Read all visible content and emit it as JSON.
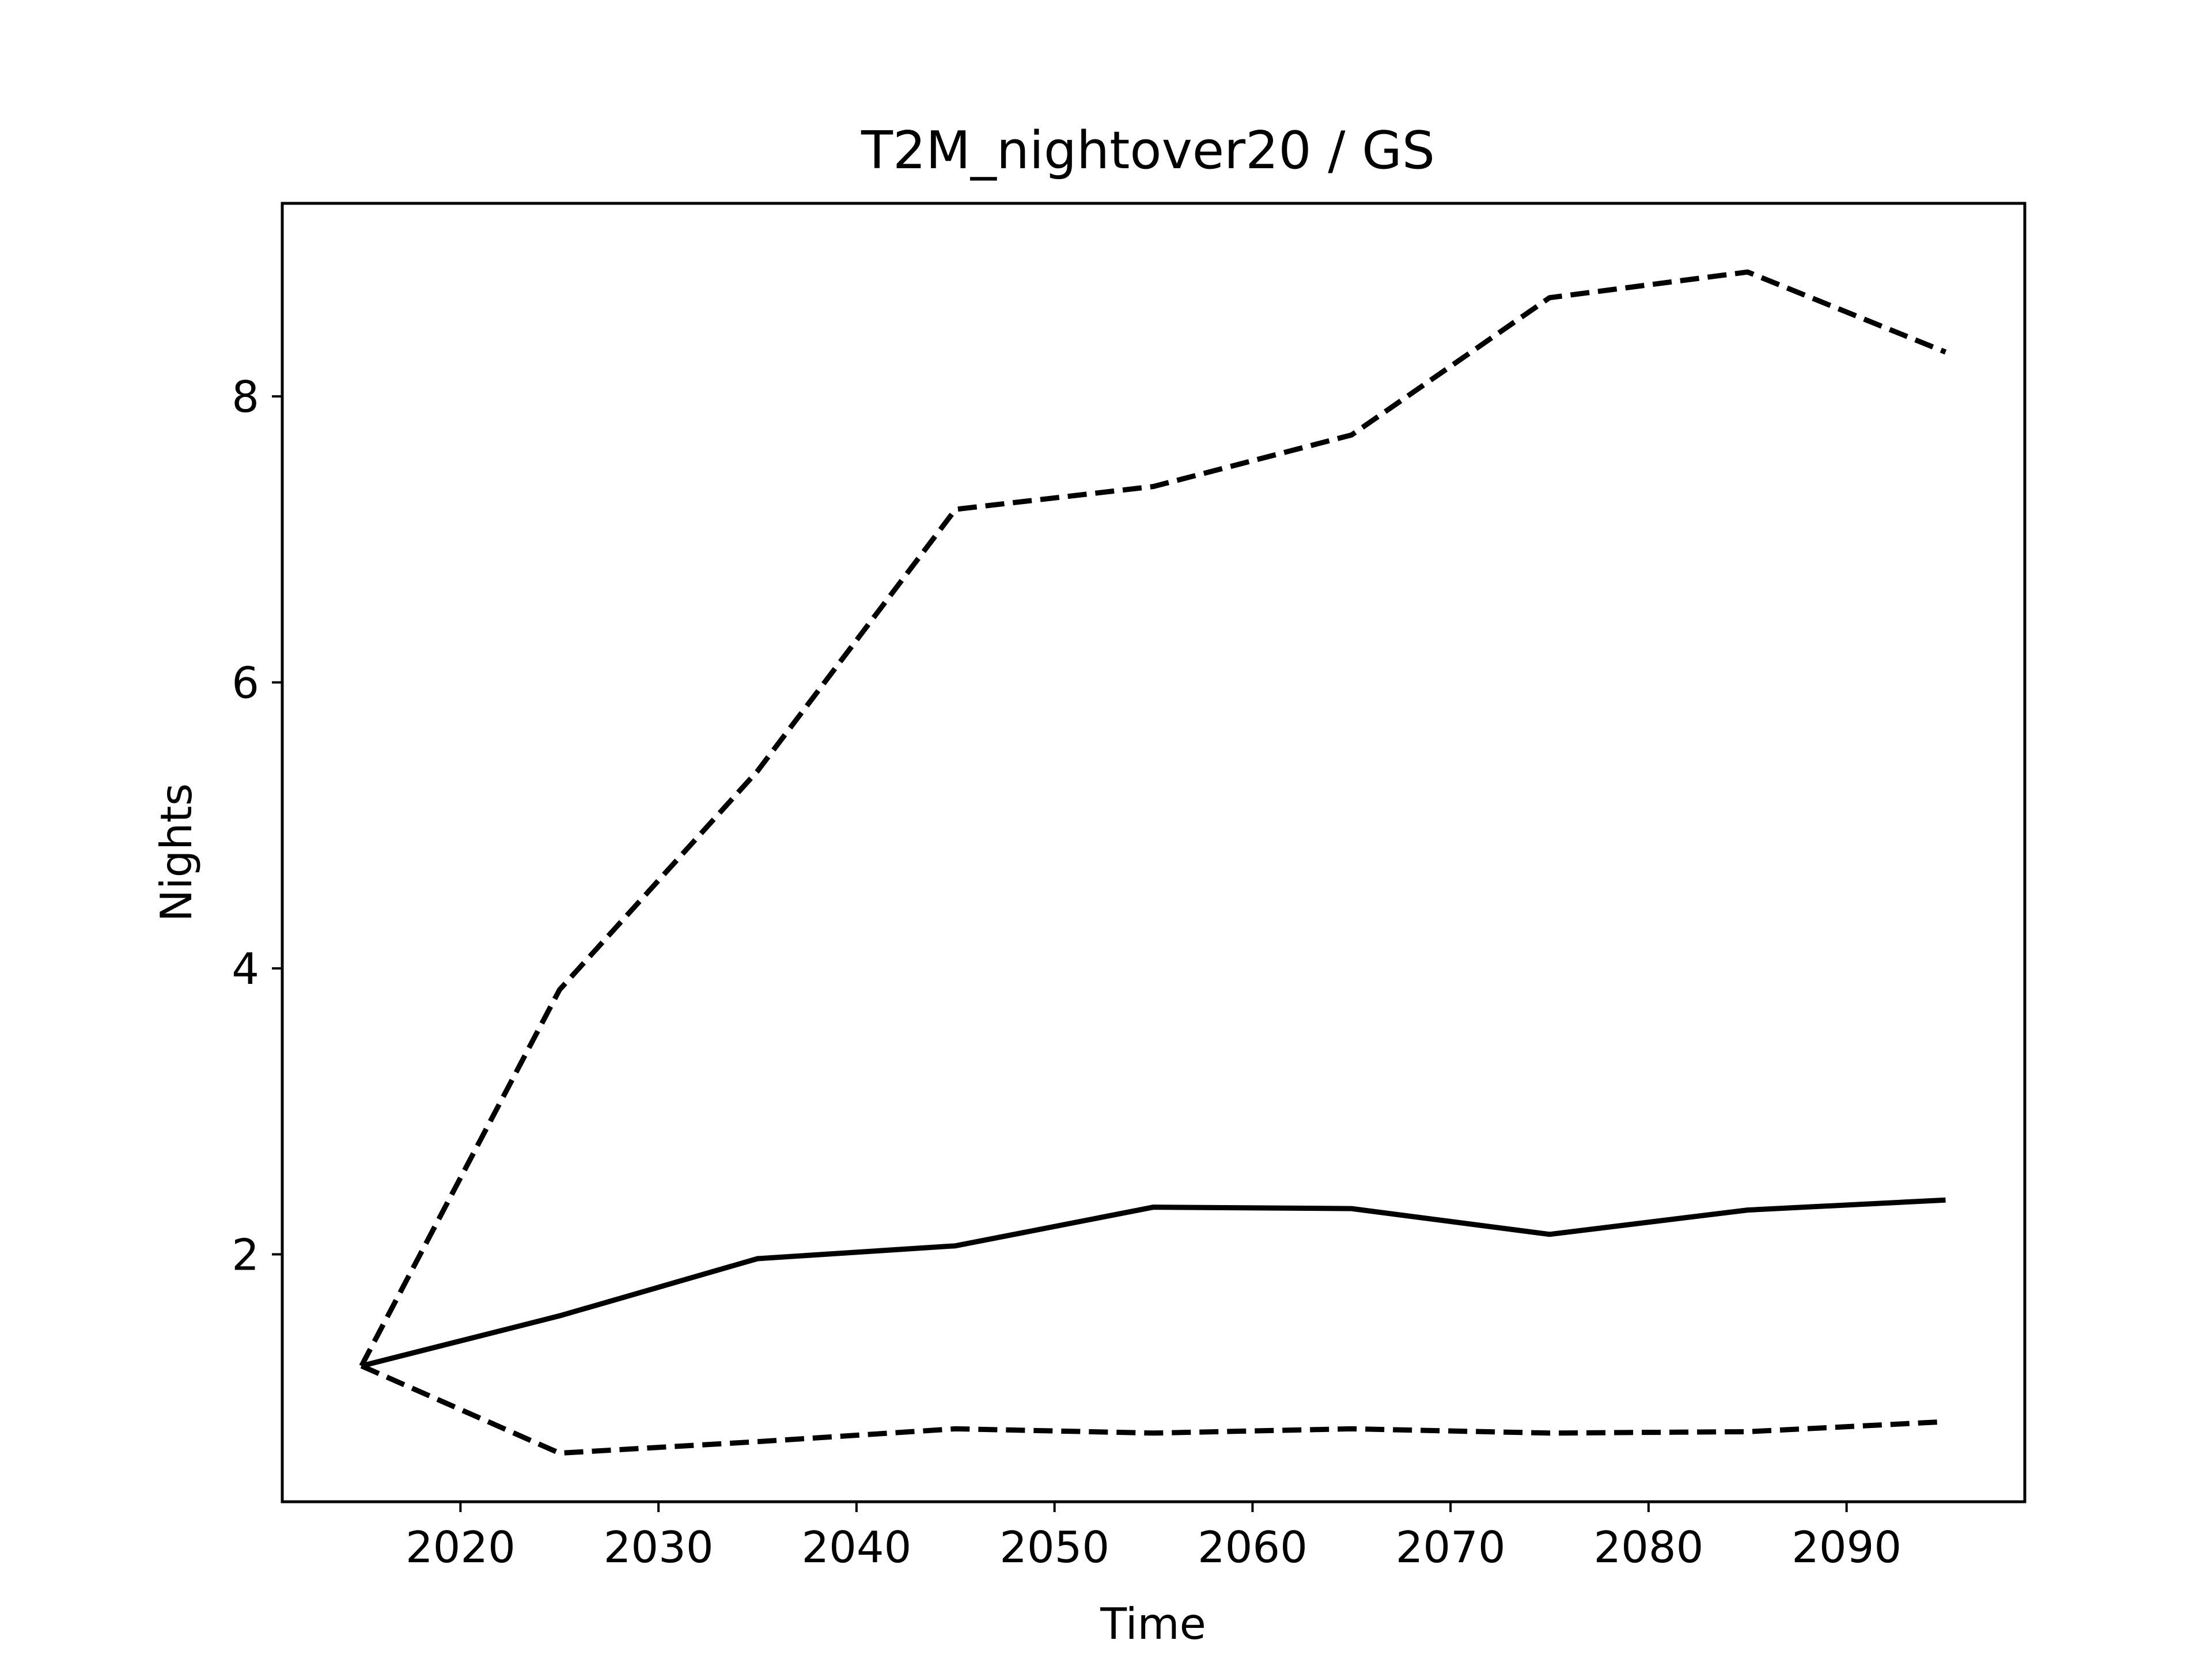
{
  "chart_data": {
    "type": "line",
    "title": "T2M_nightover20 / GS",
    "xlabel": "Time",
    "ylabel": "Nights",
    "xlim": [
      2011,
      2099
    ],
    "ylim": [
      0.27,
      9.35
    ],
    "xticks": [
      2020,
      2030,
      2040,
      2050,
      2060,
      2070,
      2080,
      2090
    ],
    "yticks": [
      2,
      4,
      6,
      8
    ],
    "grid": false,
    "x": [
      2015,
      2025,
      2035,
      2045,
      2055,
      2065,
      2075,
      2085,
      2095
    ],
    "series": [
      {
        "style": "dashed",
        "color": "#000000",
        "values": [
          1.22,
          3.85,
          5.38,
          7.21,
          7.37,
          7.73,
          8.69,
          8.87,
          8.31
        ]
      },
      {
        "style": "solid",
        "color": "#000000",
        "values": [
          1.22,
          1.57,
          1.97,
          2.06,
          2.33,
          2.32,
          2.14,
          2.31,
          2.38
        ]
      },
      {
        "style": "dashed",
        "color": "#000000",
        "values": [
          1.22,
          0.61,
          0.69,
          0.78,
          0.75,
          0.78,
          0.75,
          0.76,
          0.83
        ]
      }
    ]
  }
}
